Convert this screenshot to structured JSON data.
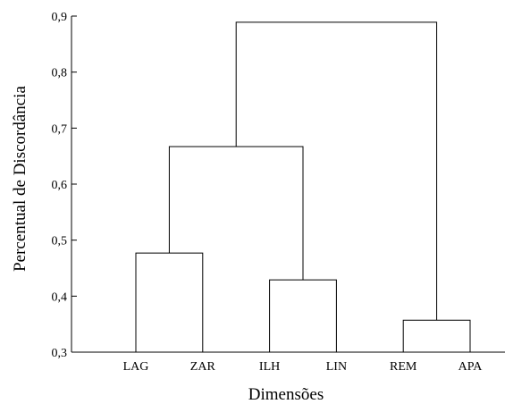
{
  "chart_data": {
    "type": "dendrogram",
    "xlabel": "Dimensões",
    "ylabel": "Percentual de Discordância",
    "ylim": [
      0.3,
      0.9
    ],
    "yticks": [
      "0,3",
      "0,4",
      "0,5",
      "0,6",
      "0,7",
      "0,8",
      "0,9"
    ],
    "yticks_values": [
      0.3,
      0.4,
      0.5,
      0.6,
      0.7,
      0.8,
      0.9
    ],
    "leaves": [
      "LAG",
      "ZAR",
      "ILH",
      "LIN",
      "REM",
      "APA"
    ],
    "merges": [
      {
        "left": "LAG",
        "right": "ZAR",
        "height": 0.477
      },
      {
        "left": "ILH",
        "right": "LIN",
        "height": 0.429
      },
      {
        "left": "REM",
        "right": "APA",
        "height": 0.357
      },
      {
        "left": "LAG+ZAR",
        "right": "ILH+LIN",
        "height": 0.667
      },
      {
        "left": "LAG+ZAR+ILH+LIN",
        "right": "REM+APA",
        "height": 0.889
      }
    ]
  }
}
